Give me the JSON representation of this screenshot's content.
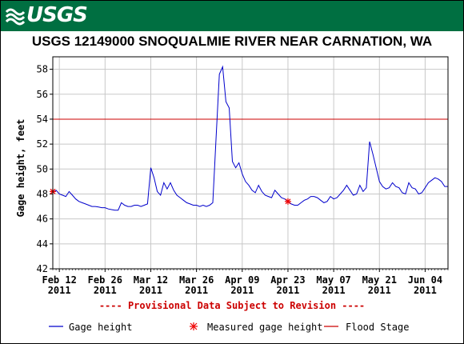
{
  "banner": {
    "logo_text": "USGS"
  },
  "chart_data": {
    "type": "line",
    "title": "USGS 12149000 SNOQUALMIE RIVER NEAR CARNATION, WA",
    "ylabel": "Gage height, feet",
    "xlabel": "",
    "ylim": [
      42,
      59
    ],
    "xlim": [
      "2011-02-10",
      "2011-06-11"
    ],
    "grid": true,
    "yticks": [
      "42",
      "44",
      "46",
      "48",
      "50",
      "52",
      "54",
      "56",
      "58"
    ],
    "xticks": [
      {
        "date": "2011-02-12",
        "label1": "Feb 12",
        "label2": "2011"
      },
      {
        "date": "2011-02-26",
        "label1": "Feb 26",
        "label2": "2011"
      },
      {
        "date": "2011-03-12",
        "label1": "Mar 12",
        "label2": "2011"
      },
      {
        "date": "2011-03-26",
        "label1": "Mar 26",
        "label2": "2011"
      },
      {
        "date": "2011-04-09",
        "label1": "Apr 09",
        "label2": "2011"
      },
      {
        "date": "2011-04-23",
        "label1": "Apr 23",
        "label2": "2011"
      },
      {
        "date": "2011-05-07",
        "label1": "May 07",
        "label2": "2011"
      },
      {
        "date": "2011-05-21",
        "label1": "May 21",
        "label2": "2011"
      },
      {
        "date": "2011-06-04",
        "label1": "Jun 04",
        "label2": "2011"
      }
    ],
    "series": [
      {
        "name": "Gage height",
        "color": "#0000cc",
        "points": [
          [
            "2011-02-10",
            48.1
          ],
          [
            "2011-02-11",
            48.3
          ],
          [
            "2011-02-12",
            48.0
          ],
          [
            "2011-02-13",
            47.9
          ],
          [
            "2011-02-14",
            47.8
          ],
          [
            "2011-02-15",
            48.2
          ],
          [
            "2011-02-16",
            47.9
          ],
          [
            "2011-02-17",
            47.6
          ],
          [
            "2011-02-18",
            47.4
          ],
          [
            "2011-02-19",
            47.3
          ],
          [
            "2011-02-20",
            47.2
          ],
          [
            "2011-02-21",
            47.1
          ],
          [
            "2011-02-22",
            47.0
          ],
          [
            "2011-02-23",
            47.0
          ],
          [
            "2011-02-24",
            46.95
          ],
          [
            "2011-02-25",
            46.9
          ],
          [
            "2011-02-26",
            46.9
          ],
          [
            "2011-02-27",
            46.8
          ],
          [
            "2011-02-28",
            46.75
          ],
          [
            "2011-03-01",
            46.7
          ],
          [
            "2011-03-02",
            46.7
          ],
          [
            "2011-03-03",
            47.3
          ],
          [
            "2011-03-04",
            47.1
          ],
          [
            "2011-03-05",
            47.0
          ],
          [
            "2011-03-06",
            47.0
          ],
          [
            "2011-03-07",
            47.1
          ],
          [
            "2011-03-08",
            47.1
          ],
          [
            "2011-03-09",
            47.0
          ],
          [
            "2011-03-10",
            47.1
          ],
          [
            "2011-03-11",
            47.2
          ],
          [
            "2011-03-12",
            50.1
          ],
          [
            "2011-03-13",
            49.3
          ],
          [
            "2011-03-14",
            48.2
          ],
          [
            "2011-03-15",
            47.9
          ],
          [
            "2011-03-16",
            48.9
          ],
          [
            "2011-03-17",
            48.4
          ],
          [
            "2011-03-18",
            48.9
          ],
          [
            "2011-03-19",
            48.3
          ],
          [
            "2011-03-20",
            47.9
          ],
          [
            "2011-03-21",
            47.7
          ],
          [
            "2011-03-22",
            47.5
          ],
          [
            "2011-03-23",
            47.3
          ],
          [
            "2011-03-24",
            47.2
          ],
          [
            "2011-03-25",
            47.1
          ],
          [
            "2011-03-26",
            47.1
          ],
          [
            "2011-03-27",
            47.0
          ],
          [
            "2011-03-28",
            47.1
          ],
          [
            "2011-03-29",
            47.0
          ],
          [
            "2011-03-30",
            47.1
          ],
          [
            "2011-03-31",
            47.3
          ],
          [
            "2011-04-01",
            52.5
          ],
          [
            "2011-04-02",
            57.6
          ],
          [
            "2011-04-03",
            58.2
          ],
          [
            "2011-04-04",
            55.4
          ],
          [
            "2011-04-05",
            54.9
          ],
          [
            "2011-04-06",
            50.6
          ],
          [
            "2011-04-07",
            50.1
          ],
          [
            "2011-04-08",
            50.5
          ],
          [
            "2011-04-09",
            49.6
          ],
          [
            "2011-04-10",
            49.0
          ],
          [
            "2011-04-11",
            48.7
          ],
          [
            "2011-04-12",
            48.3
          ],
          [
            "2011-04-13",
            48.1
          ],
          [
            "2011-04-14",
            48.7
          ],
          [
            "2011-04-15",
            48.2
          ],
          [
            "2011-04-16",
            47.9
          ],
          [
            "2011-04-17",
            47.8
          ],
          [
            "2011-04-18",
            47.7
          ],
          [
            "2011-04-19",
            48.3
          ],
          [
            "2011-04-20",
            48.0
          ],
          [
            "2011-04-21",
            47.7
          ],
          [
            "2011-04-22",
            47.6
          ],
          [
            "2011-04-23",
            47.4
          ],
          [
            "2011-04-24",
            47.2
          ],
          [
            "2011-04-25",
            47.1
          ],
          [
            "2011-04-26",
            47.1
          ],
          [
            "2011-04-27",
            47.3
          ],
          [
            "2011-04-28",
            47.5
          ],
          [
            "2011-04-29",
            47.6
          ],
          [
            "2011-04-30",
            47.8
          ],
          [
            "2011-05-01",
            47.8
          ],
          [
            "2011-05-02",
            47.7
          ],
          [
            "2011-05-03",
            47.5
          ],
          [
            "2011-05-04",
            47.3
          ],
          [
            "2011-05-05",
            47.4
          ],
          [
            "2011-05-06",
            47.8
          ],
          [
            "2011-05-07",
            47.6
          ],
          [
            "2011-05-08",
            47.7
          ],
          [
            "2011-05-09",
            48.0
          ],
          [
            "2011-05-10",
            48.3
          ],
          [
            "2011-05-11",
            48.7
          ],
          [
            "2011-05-12",
            48.3
          ],
          [
            "2011-05-13",
            47.9
          ],
          [
            "2011-05-14",
            48.0
          ],
          [
            "2011-05-15",
            48.7
          ],
          [
            "2011-05-16",
            48.2
          ],
          [
            "2011-05-17",
            48.5
          ],
          [
            "2011-05-18",
            52.2
          ],
          [
            "2011-05-19",
            51.2
          ],
          [
            "2011-05-20",
            50.1
          ],
          [
            "2011-05-21",
            49.0
          ],
          [
            "2011-05-22",
            48.6
          ],
          [
            "2011-05-23",
            48.4
          ],
          [
            "2011-05-24",
            48.5
          ],
          [
            "2011-05-25",
            48.9
          ],
          [
            "2011-05-26",
            48.6
          ],
          [
            "2011-05-27",
            48.5
          ],
          [
            "2011-05-28",
            48.1
          ],
          [
            "2011-05-29",
            48.0
          ],
          [
            "2011-05-30",
            48.9
          ],
          [
            "2011-05-31",
            48.5
          ],
          [
            "2011-06-01",
            48.4
          ],
          [
            "2011-06-02",
            48.0
          ],
          [
            "2011-06-03",
            48.1
          ],
          [
            "2011-06-04",
            48.5
          ],
          [
            "2011-06-05",
            48.9
          ],
          [
            "2011-06-06",
            49.1
          ],
          [
            "2011-06-07",
            49.3
          ],
          [
            "2011-06-08",
            49.2
          ],
          [
            "2011-06-09",
            49.0
          ],
          [
            "2011-06-10",
            48.6
          ],
          [
            "2011-06-11",
            48.6
          ]
        ]
      }
    ],
    "measured": {
      "name": "Measured gage height",
      "color": "#ee0000",
      "points": [
        [
          "2011-02-10",
          48.2
        ],
        [
          "2011-04-23",
          47.4
        ]
      ]
    },
    "flood_stage": {
      "name": "Flood Stage",
      "value": 54,
      "color": "#cc0000"
    },
    "note": "---- Provisional Data Subject to Revision ----"
  },
  "legend": {
    "gage_label": "Gage height",
    "measured_label": "Measured gage height",
    "flood_label": "Flood Stage"
  }
}
